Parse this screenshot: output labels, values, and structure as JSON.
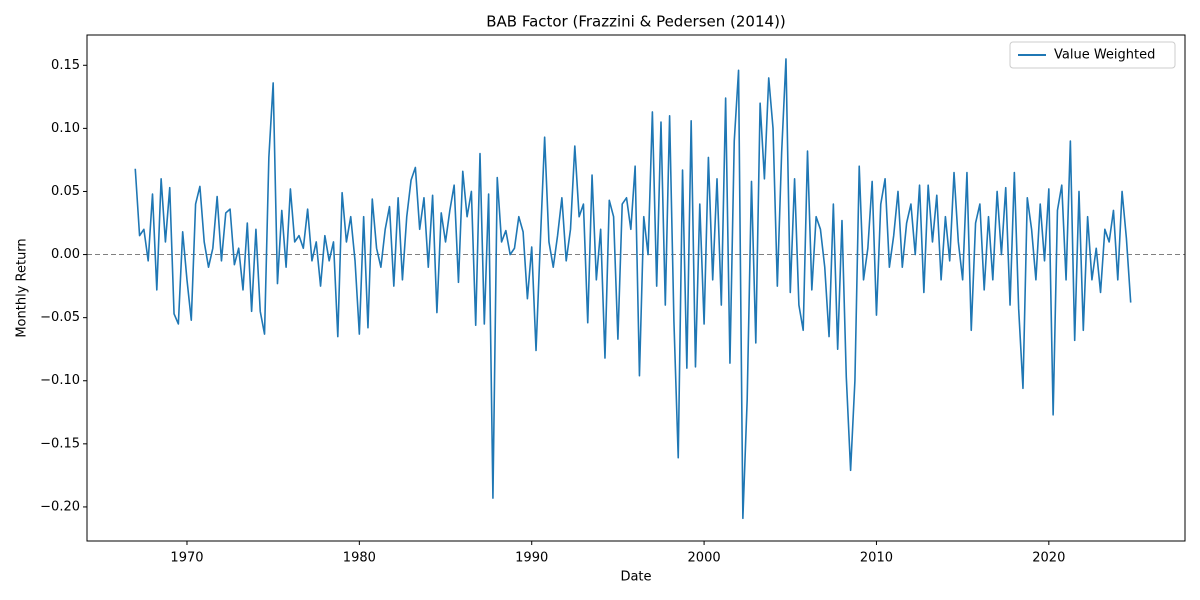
{
  "chart_data": {
    "type": "line",
    "title": "BAB Factor (Frazzini & Pedersen (2014))",
    "x_label": "Date",
    "y_label": "Monthly Return",
    "x": [
      1967,
      1967.25,
      1967.5,
      1967.75,
      1968,
      1968.25,
      1968.5,
      1968.75,
      1969,
      1969.25,
      1969.5,
      1969.75,
      1970,
      1970.25,
      1970.5,
      1970.75,
      1971,
      1971.25,
      1971.5,
      1971.75,
      1972,
      1972.25,
      1972.5,
      1972.75,
      1973,
      1973.25,
      1973.5,
      1973.75,
      1974,
      1974.25,
      1974.5,
      1974.75,
      1975,
      1975.25,
      1975.5,
      1975.75,
      1976,
      1976.25,
      1976.5,
      1976.75,
      1977,
      1977.25,
      1977.5,
      1977.75,
      1978,
      1978.25,
      1978.5,
      1978.75,
      1979,
      1979.25,
      1979.5,
      1979.75,
      1980,
      1980.25,
      1980.5,
      1980.75,
      1981,
      1981.25,
      1981.5,
      1981.75,
      1982,
      1982.25,
      1982.5,
      1982.75,
      1983,
      1983.25,
      1983.5,
      1983.75,
      1984,
      1984.25,
      1984.5,
      1984.75,
      1985,
      1985.25,
      1985.5,
      1985.75,
      1986,
      1986.25,
      1986.5,
      1986.75,
      1987,
      1987.25,
      1987.5,
      1987.75,
      1988,
      1988.25,
      1988.5,
      1988.75,
      1989,
      1989.25,
      1989.5,
      1989.75,
      1990,
      1990.25,
      1990.5,
      1990.75,
      1991,
      1991.25,
      1991.5,
      1991.75,
      1992,
      1992.25,
      1992.5,
      1992.75,
      1993,
      1993.25,
      1993.5,
      1993.75,
      1994,
      1994.25,
      1994.5,
      1994.75,
      1995,
      1995.25,
      1995.5,
      1995.75,
      1996,
      1996.25,
      1996.5,
      1996.75,
      1997,
      1997.25,
      1997.5,
      1997.75,
      1998,
      1998.25,
      1998.5,
      1998.75,
      1999,
      1999.25,
      1999.5,
      1999.75,
      2000,
      2000.25,
      2000.5,
      2000.75,
      2001,
      2001.25,
      2001.5,
      2001.75,
      2002,
      2002.25,
      2002.5,
      2002.75,
      2003,
      2003.25,
      2003.5,
      2003.75,
      2004,
      2004.25,
      2004.5,
      2004.75,
      2005,
      2005.25,
      2005.5,
      2005.75,
      2006,
      2006.25,
      2006.5,
      2006.75,
      2007,
      2007.25,
      2007.5,
      2007.75,
      2008,
      2008.25,
      2008.5,
      2008.75,
      2009,
      2009.25,
      2009.5,
      2009.75,
      2010,
      2010.25,
      2010.5,
      2010.75,
      2011,
      2011.25,
      2011.5,
      2011.75,
      2012,
      2012.25,
      2012.5,
      2012.75,
      2013,
      2013.25,
      2013.5,
      2013.75,
      2014,
      2014.25,
      2014.5,
      2014.75,
      2015,
      2015.25,
      2015.5,
      2015.75,
      2016,
      2016.25,
      2016.5,
      2016.75,
      2017,
      2017.25,
      2017.5,
      2017.75,
      2018,
      2018.25,
      2018.5,
      2018.75,
      2019,
      2019.25,
      2019.5,
      2019.75,
      2020,
      2020.25,
      2020.5,
      2020.75,
      2021,
      2021.25,
      2021.5,
      2021.75,
      2022,
      2022.25,
      2022.5,
      2022.75,
      2023,
      2023.25,
      2023.5,
      2023.75,
      2024,
      2024.25,
      2024.5,
      2024.75
    ],
    "series": [
      {
        "name": "Value Weighted",
        "color": "#1f77b4",
        "values": [
          0.068,
          0.015,
          0.02,
          -0.005,
          0.048,
          -0.028,
          0.06,
          0.01,
          0.053,
          -0.047,
          -0.055,
          0.018,
          -0.02,
          -0.052,
          0.04,
          0.054,
          0.01,
          -0.01,
          0.005,
          0.046,
          -0.005,
          0.033,
          0.036,
          -0.008,
          0.005,
          -0.028,
          0.025,
          -0.045,
          0.02,
          -0.045,
          -0.063,
          0.077,
          0.136,
          -0.023,
          0.035,
          -0.01,
          0.052,
          0.01,
          0.015,
          0.005,
          0.036,
          -0.005,
          0.01,
          -0.025,
          0.015,
          -0.005,
          0.01,
          -0.065,
          0.049,
          0.01,
          0.03,
          -0.005,
          -0.063,
          0.03,
          -0.058,
          0.044,
          0.005,
          -0.01,
          0.02,
          0.038,
          -0.025,
          0.045,
          -0.02,
          0.03,
          0.059,
          0.069,
          0.02,
          0.045,
          -0.01,
          0.047,
          -0.046,
          0.033,
          0.01,
          0.035,
          0.055,
          -0.022,
          0.066,
          0.03,
          0.05,
          -0.056,
          0.08,
          -0.055,
          0.048,
          -0.193,
          0.061,
          0.01,
          0.019,
          0.0,
          0.005,
          0.03,
          0.018,
          -0.035,
          0.006,
          -0.076,
          0.01,
          0.093,
          0.01,
          -0.01,
          0.015,
          0.045,
          -0.005,
          0.02,
          0.086,
          0.03,
          0.04,
          -0.054,
          0.063,
          -0.02,
          0.02,
          -0.082,
          0.043,
          0.03,
          -0.067,
          0.04,
          0.045,
          0.02,
          0.07,
          -0.096,
          0.03,
          0.0,
          0.113,
          -0.025,
          0.105,
          -0.04,
          0.11,
          -0.053,
          -0.161,
          0.067,
          -0.09,
          0.106,
          -0.089,
          0.04,
          -0.055,
          0.077,
          -0.02,
          0.06,
          -0.04,
          0.124,
          -0.086,
          0.09,
          0.146,
          -0.209,
          -0.115,
          0.058,
          -0.07,
          0.12,
          0.06,
          0.14,
          0.1,
          -0.025,
          0.081,
          0.155,
          -0.03,
          0.06,
          -0.04,
          -0.06,
          0.082,
          -0.028,
          0.03,
          0.02,
          -0.01,
          -0.065,
          0.04,
          -0.075,
          0.027,
          -0.097,
          -0.171,
          -0.1,
          0.07,
          -0.02,
          0.005,
          0.058,
          -0.048,
          0.04,
          0.06,
          -0.01,
          0.015,
          0.05,
          -0.01,
          0.025,
          0.04,
          0.0,
          0.055,
          -0.03,
          0.055,
          0.01,
          0.047,
          -0.02,
          0.03,
          -0.005,
          0.065,
          0.01,
          -0.02,
          0.065,
          -0.06,
          0.025,
          0.04,
          -0.028,
          0.03,
          -0.02,
          0.05,
          0.0,
          0.053,
          -0.04,
          0.065,
          -0.043,
          -0.106,
          0.045,
          0.02,
          -0.02,
          0.04,
          -0.005,
          0.052,
          -0.127,
          0.035,
          0.055,
          -0.02,
          0.09,
          -0.068,
          0.05,
          -0.06,
          0.03,
          -0.02,
          0.005,
          -0.03,
          0.02,
          0.01,
          0.035,
          -0.02,
          0.05,
          0.013,
          -0.038
        ]
      }
    ],
    "xlim": [
      1964.2,
      2027.9
    ],
    "ylim": [
      -0.227,
      0.174
    ],
    "xticks": [
      1970,
      1980,
      1990,
      2000,
      2010,
      2020
    ],
    "yticks": [
      {
        "value": -0.2,
        "label": "−0.20"
      },
      {
        "value": -0.15,
        "label": "−0.15"
      },
      {
        "value": -0.1,
        "label": "−0.10"
      },
      {
        "value": -0.05,
        "label": "−0.05"
      },
      {
        "value": 0,
        "label": "0.00"
      },
      {
        "value": 0.05,
        "label": "0.05"
      },
      {
        "value": 0.1,
        "label": "0.10"
      },
      {
        "value": 0.15,
        "label": "0.15"
      }
    ],
    "reference_line": 0,
    "legend": "upper right"
  }
}
